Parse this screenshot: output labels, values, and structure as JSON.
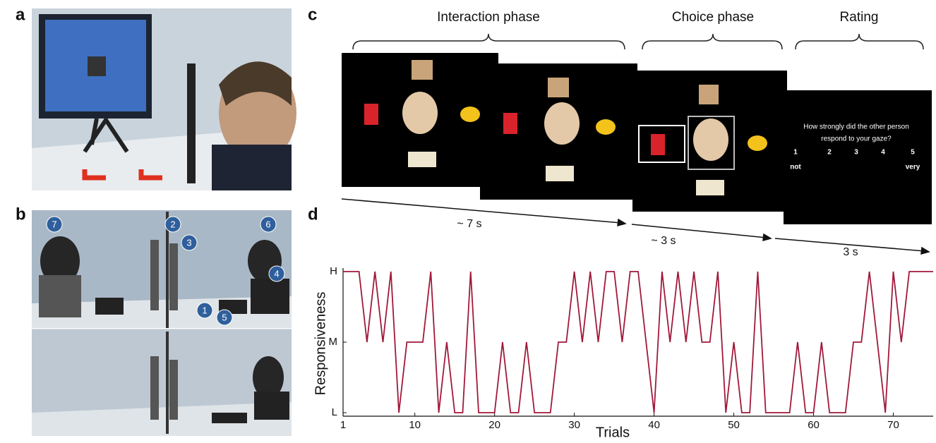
{
  "panels": {
    "a": {
      "label": "a"
    },
    "b": {
      "label": "b",
      "badges": [
        "1",
        "2",
        "3",
        "4",
        "5",
        "6",
        "7"
      ]
    },
    "c": {
      "label": "c",
      "phases": [
        "Interaction phase",
        "Choice phase",
        "Rating"
      ],
      "durations": [
        "~ 7 s",
        "~ 3 s",
        "3 s"
      ],
      "rating_question": [
        "How strongly did the other person",
        "respond to your gaze?"
      ],
      "rating_scale": [
        "1",
        "2",
        "3",
        "4",
        "5"
      ],
      "rating_anchors": [
        "not",
        "very"
      ]
    },
    "d": {
      "label": "d"
    }
  },
  "chart_data": {
    "type": "line",
    "xlabel": "Trials",
    "ylabel": "Responsiveness",
    "color": "#a0193a",
    "x": [
      1,
      2,
      3,
      4,
      5,
      6,
      7,
      8,
      9,
      10,
      11,
      12,
      13,
      14,
      15,
      16,
      17,
      18,
      19,
      20,
      21,
      22,
      23,
      24,
      25,
      26,
      27,
      28,
      29,
      30,
      31,
      32,
      33,
      34,
      35,
      36,
      37,
      38,
      39,
      40,
      41,
      42,
      43,
      44,
      45,
      46,
      47,
      48,
      49,
      50,
      51,
      52,
      53,
      54,
      55,
      56,
      57,
      58,
      59,
      60,
      61,
      62,
      63,
      64,
      65,
      66,
      67,
      68,
      69,
      70,
      71,
      72,
      73,
      74,
      75
    ],
    "values": [
      2,
      2,
      2,
      1,
      2,
      1,
      2,
      0,
      1,
      1,
      1,
      2,
      0,
      1,
      0,
      0,
      2,
      0,
      0,
      0,
      1,
      0,
      0,
      1,
      0,
      0,
      0,
      1,
      1,
      2,
      1,
      2,
      1,
      2,
      2,
      1,
      2,
      2,
      1,
      0,
      2,
      1,
      2,
      1,
      2,
      1,
      1,
      2,
      0,
      1,
      0,
      0,
      2,
      0,
      0,
      0,
      0,
      1,
      0,
      0,
      1,
      0,
      0,
      0,
      1,
      1,
      2,
      1,
      0,
      2,
      1,
      2,
      2,
      2,
      2
    ],
    "xlim": [
      1,
      75
    ],
    "ylim": [
      0,
      2
    ],
    "xticks": [
      1,
      10,
      20,
      30,
      40,
      50,
      60,
      70
    ],
    "yticks": [
      {
        "value": 0,
        "label": "L"
      },
      {
        "value": 1,
        "label": "M"
      },
      {
        "value": 2,
        "label": "H"
      }
    ]
  }
}
